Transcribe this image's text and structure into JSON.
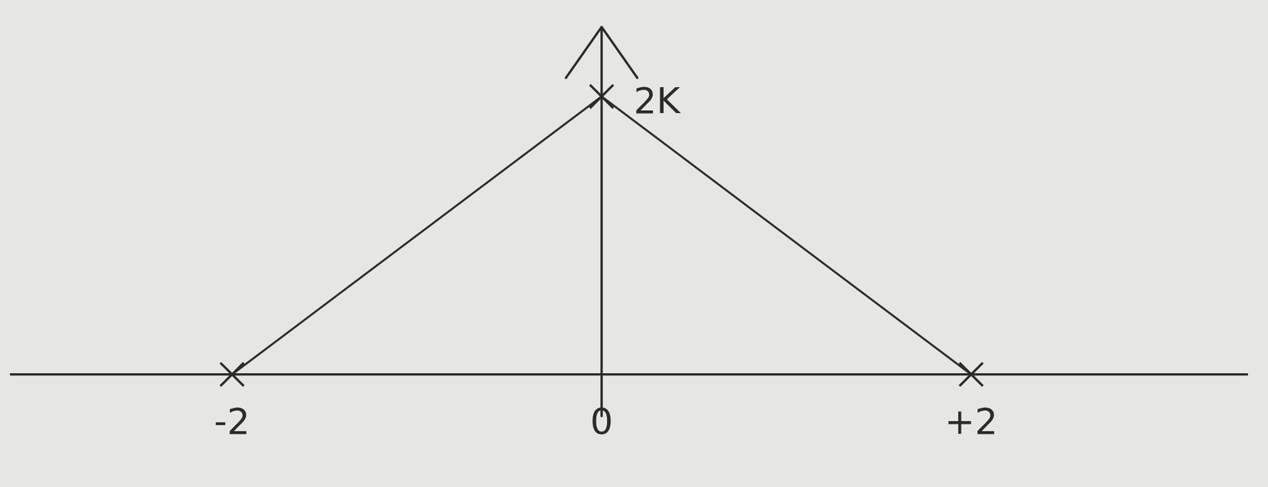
{
  "chart_data": {
    "type": "line",
    "x": [
      -2,
      0,
      2
    ],
    "values": [
      0,
      2,
      0
    ],
    "color": "#2b2b2b",
    "marker": "x",
    "xlim": [
      -3.2,
      3.5
    ],
    "ylim": [
      -0.3,
      2.5
    ],
    "xticks": [
      {
        "value": -2,
        "label": "-2"
      },
      {
        "value": 0,
        "label": "0"
      },
      {
        "value": 2,
        "label": "+2"
      }
    ],
    "yticks": [
      {
        "value": 2,
        "label": "2K"
      }
    ]
  }
}
